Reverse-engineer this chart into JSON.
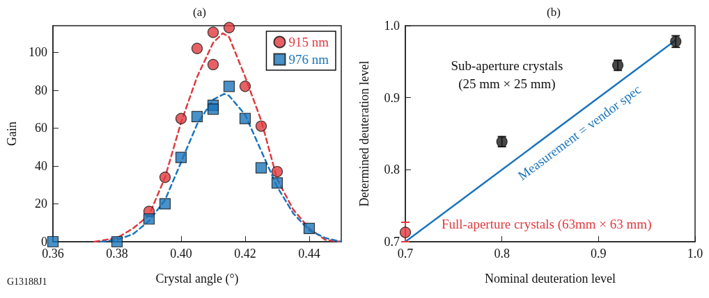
{
  "chart_data": [
    {
      "type": "scatter",
      "title": "(a)",
      "xlabel": "Crystal angle (°)",
      "ylabel": "Gain",
      "xlim": [
        0.36,
        0.45
      ],
      "xticks": [
        {
          "value": 0.36,
          "label": "0.36"
        },
        {
          "value": 0.38,
          "label": "0.38"
        },
        {
          "value": 0.4,
          "label": "0.40"
        },
        {
          "value": 0.42,
          "label": "0.42"
        },
        {
          "value": 0.44,
          "label": "0.44"
        }
      ],
      "ylim": [
        0,
        114
      ],
      "yticks": [
        0,
        20,
        40,
        60,
        80,
        100
      ],
      "legend": "top right",
      "annotations": [
        "G13188J1"
      ],
      "series": [
        {
          "type": "line",
          "color": "#e0393e",
          "line_style": "dashed",
          "marker": "none",
          "x": [
            0.373,
            0.38,
            0.385,
            0.39,
            0.395,
            0.4,
            0.405,
            0.41,
            0.413,
            0.415,
            0.42,
            0.425,
            0.43,
            0.435,
            0.44,
            0.445,
            0.45
          ],
          "values": [
            0,
            2,
            7,
            14,
            34,
            63,
            87,
            105,
            110,
            108,
            87,
            64,
            33,
            17,
            7,
            1,
            0
          ]
        },
        {
          "type": "line",
          "color": "#1a75bc",
          "line_style": "dashed",
          "marker": "none",
          "x": [
            0.375,
            0.38,
            0.385,
            0.39,
            0.395,
            0.4,
            0.405,
            0.41,
            0.4135,
            0.415,
            0.42,
            0.425,
            0.43,
            0.435,
            0.44,
            0.445,
            0.45
          ],
          "values": [
            0,
            1,
            4,
            11,
            22,
            42,
            62,
            75,
            78,
            77,
            67,
            48,
            29,
            15,
            6,
            2,
            0
          ]
        },
        {
          "name": "915 nm",
          "color": "#e0393e",
          "marker": "circle",
          "x": [
            0.39,
            0.395,
            0.4,
            0.405,
            0.41,
            0.41,
            0.415,
            0.42,
            0.425,
            0.43
          ],
          "values": [
            16,
            34,
            65,
            102,
            110.5,
            93.5,
            113,
            82,
            61,
            37
          ]
        },
        {
          "name": "976 nm",
          "color": "#1a75bc",
          "marker": "square",
          "x": [
            0.36,
            0.38,
            0.39,
            0.395,
            0.4,
            0.405,
            0.41,
            0.41,
            0.415,
            0.42,
            0.425,
            0.43,
            0.44
          ],
          "values": [
            0,
            0,
            12,
            20,
            44.5,
            66,
            72,
            70,
            82,
            65,
            39,
            31,
            7
          ]
        }
      ]
    },
    {
      "type": "scatter",
      "title": "(b)",
      "xlabel": "Nominal deuteration level",
      "ylabel": "Determined deuteration level",
      "xlim": [
        0.7,
        1.0
      ],
      "xticks": [
        0.7,
        0.8,
        0.9,
        {
          "value": 1.0,
          "label": "1.0"
        }
      ],
      "ylim": [
        0.7,
        1.0
      ],
      "yticks": [
        0.7,
        0.8,
        0.9,
        {
          "value": 1.0,
          "label": "1.0"
        }
      ],
      "marker": "circle",
      "annotations": [
        "Sub-aperture crystals\n(25 mm × 25 mm)",
        {
          "text": "Measurement = vendor spec",
          "x": 0.87,
          "y": 0.87
        },
        {
          "text": "Full-aperture crystals (63mm × 63 mm)",
          "x": 0.7,
          "y": 0.713
        }
      ],
      "series": [
        {
          "type": "line",
          "color": "#1a75bc",
          "line_style": "solid",
          "marker": "none",
          "x": [
            0.7,
            0.98
          ],
          "values": [
            0.7,
            0.98
          ]
        },
        {
          "color": "#1a1a1a",
          "x": [
            0.8,
            0.92,
            0.98
          ],
          "values": [
            0.839,
            0.945,
            0.978
          ],
          "errors": [
            0.007,
            0.007,
            0.008
          ]
        },
        {
          "color": "#e0393e",
          "x": [
            0.7
          ],
          "values": [
            0.713
          ],
          "errors": [
            [
              0.7,
              0.727
            ]
          ]
        }
      ]
    }
  ]
}
